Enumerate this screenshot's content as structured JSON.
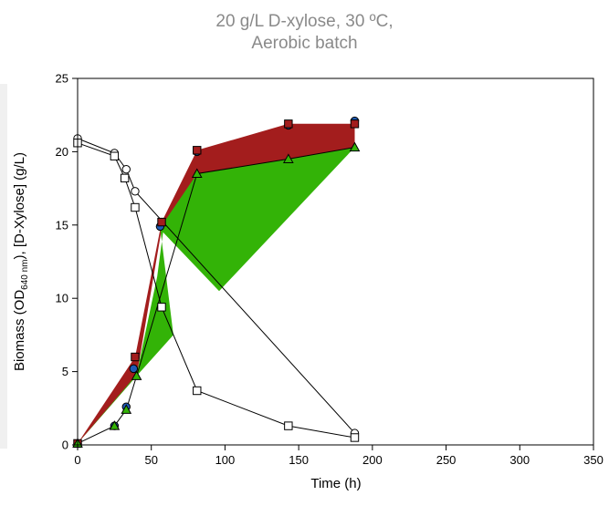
{
  "chart_data": {
    "type": "line",
    "title_lines": [
      "20 g/L D-xylose, 30 ºC,",
      "Aerobic batch"
    ],
    "xlabel": "Time (h)",
    "ylabel": {
      "prefix": "Biomass (OD",
      "subscript": "640 nm",
      "suffix": "), [D-Xylose] (g/L)"
    },
    "xlim": [
      0,
      350
    ],
    "ylim": [
      0,
      25
    ],
    "xticks": [
      0,
      50,
      100,
      150,
      200,
      250,
      300,
      350
    ],
    "yticks": [
      0,
      5,
      10,
      15,
      20,
      25
    ],
    "grid": false,
    "colors": {
      "red": "#a31d1d",
      "green": "#33b307",
      "blue": "#1f5bb5",
      "axis": "#000000"
    },
    "bands": [
      {
        "color": "#a31d1d",
        "points": [
          [
            0,
            0.1
          ],
          [
            39,
            6
          ],
          [
            57,
            15.2
          ],
          [
            81,
            20.1
          ],
          [
            143,
            21.9
          ],
          [
            188,
            21.9
          ],
          [
            188,
            20.3
          ],
          [
            143,
            19.5
          ],
          [
            81,
            18.5
          ],
          [
            57,
            14.7
          ],
          [
            40,
            4.7
          ],
          [
            0,
            0.1
          ]
        ]
      },
      {
        "color": "#33b307",
        "points": [
          [
            0,
            0.1
          ],
          [
            40,
            4.7
          ],
          [
            65,
            7.5
          ],
          [
            56,
            14.8
          ],
          [
            81,
            18.5
          ],
          [
            143,
            19.5
          ],
          [
            188,
            20.3
          ],
          [
            96,
            10.5
          ],
          [
            58,
            14.5
          ],
          [
            54,
            11.5
          ],
          [
            40,
            4.8
          ],
          [
            0,
            0.1
          ]
        ]
      }
    ],
    "series": [
      {
        "name": "",
        "marker": "circle",
        "fill": "#1f5bb5",
        "line": false,
        "points": [
          [
            0,
            0.1
          ],
          [
            25,
            1.3
          ],
          [
            33,
            2.6
          ],
          [
            38,
            5.2
          ],
          [
            56,
            14.9
          ],
          [
            81,
            20.0
          ],
          [
            143,
            21.8
          ],
          [
            188,
            22.1
          ]
        ]
      },
      {
        "name": "",
        "marker": "square",
        "fill": "#a31d1d",
        "line": false,
        "points": [
          [
            0,
            0.1
          ],
          [
            39,
            6.0
          ],
          [
            57,
            15.2
          ],
          [
            81,
            20.1
          ],
          [
            143,
            21.9
          ],
          [
            188,
            21.9
          ]
        ]
      },
      {
        "name": "",
        "marker": "triangle",
        "fill": "#33b307",
        "line": true,
        "points": [
          [
            0,
            0.1
          ],
          [
            25,
            1.3
          ],
          [
            33,
            2.4
          ],
          [
            40,
            4.7
          ],
          [
            81,
            18.5
          ],
          [
            143,
            19.5
          ],
          [
            188,
            20.3
          ]
        ]
      },
      {
        "name": "",
        "marker": "circle",
        "fill": "#ffffff",
        "line": true,
        "points": [
          [
            0,
            20.9
          ],
          [
            25,
            19.9
          ],
          [
            33,
            18.8
          ],
          [
            39,
            17.3
          ],
          [
            188,
            0.8
          ]
        ]
      },
      {
        "name": "",
        "marker": "square",
        "fill": "#ffffff",
        "line": true,
        "points": [
          [
            0,
            20.6
          ],
          [
            25,
            19.7
          ],
          [
            32,
            18.2
          ],
          [
            39,
            16.2
          ],
          [
            57,
            9.4
          ],
          [
            81,
            3.7
          ],
          [
            143,
            1.3
          ],
          [
            188,
            0.5
          ]
        ]
      }
    ]
  }
}
